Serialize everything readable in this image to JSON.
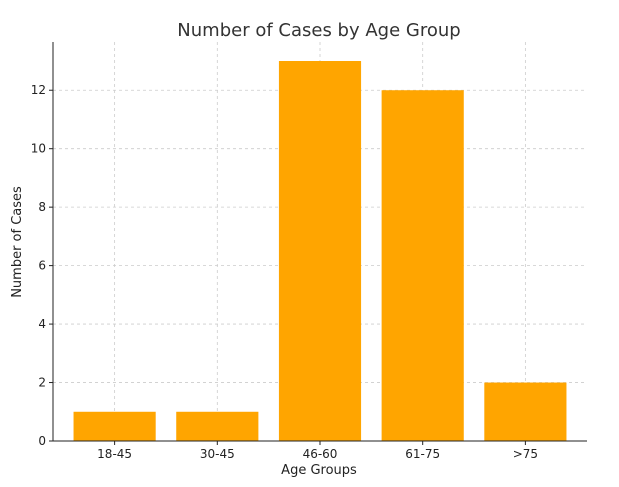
{
  "chart_data": {
    "type": "bar",
    "title": "Number of Cases by Age Group",
    "xlabel": "Age Groups",
    "ylabel": "Number of Cases",
    "categories": [
      "18-45",
      "30-45",
      "46-60",
      "61-75",
      ">75"
    ],
    "values": [
      1,
      1,
      13,
      12,
      2
    ],
    "ylim": [
      0,
      13.65
    ],
    "yticks": [
      0,
      2,
      4,
      6,
      8,
      10,
      12
    ],
    "grid": true,
    "bar_color": "#FFA500"
  }
}
